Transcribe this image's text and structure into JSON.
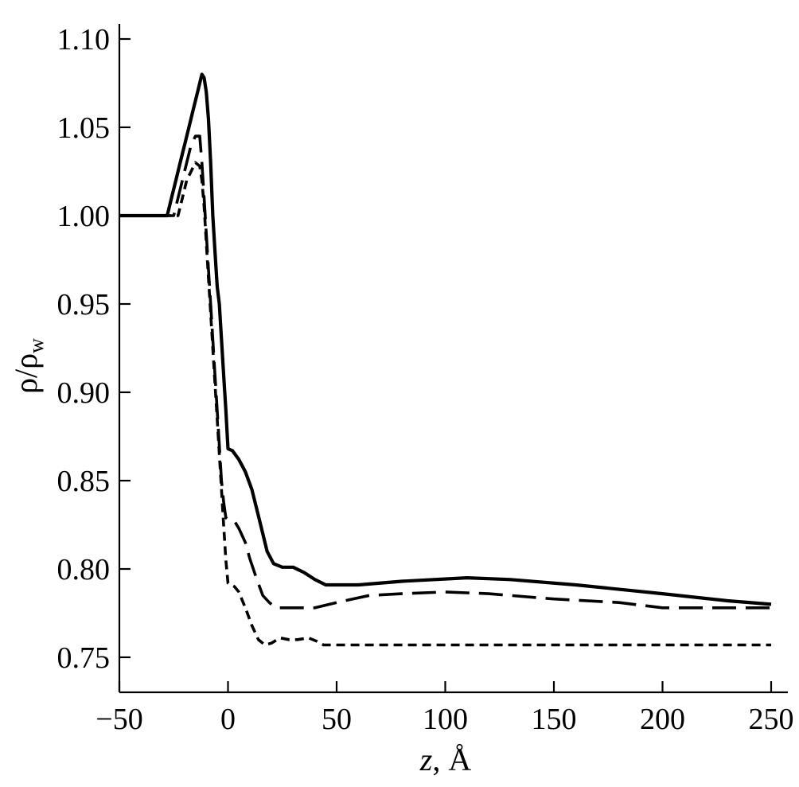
{
  "chart_data": {
    "type": "line",
    "xlabel_var": "z",
    "xlabel_unit": ", Å",
    "ylabel_main": "ρ/ρ",
    "ylabel_sub": "w",
    "xlim": [
      -50,
      250
    ],
    "ylim": [
      0.73,
      1.11
    ],
    "x_ticks": [
      -50,
      0,
      50,
      100,
      150,
      200,
      250
    ],
    "x_tick_labels": [
      "−50",
      "0",
      "50",
      "100",
      "150",
      "200",
      "250"
    ],
    "y_ticks": [
      0.75,
      0.8,
      0.85,
      0.9,
      0.95,
      1.0,
      1.05,
      1.1
    ],
    "y_tick_labels": [
      "0.75",
      "0.80",
      "0.85",
      "0.90",
      "0.95",
      "1.00",
      "1.05",
      "1.10"
    ],
    "grid": false,
    "series": [
      {
        "style": "solid",
        "points": [
          [
            -50,
            1.0
          ],
          [
            -28,
            1.0
          ],
          [
            -26,
            1.01
          ],
          [
            -24,
            1.02
          ],
          [
            -22,
            1.03
          ],
          [
            -20,
            1.04
          ],
          [
            -18,
            1.05
          ],
          [
            -16,
            1.06
          ],
          [
            -14,
            1.07
          ],
          [
            -12,
            1.08
          ],
          [
            -11,
            1.078
          ],
          [
            -10,
            1.07
          ],
          [
            -9,
            1.055
          ],
          [
            -8,
            1.03
          ],
          [
            -7,
            1.0
          ],
          [
            -6,
            0.98
          ],
          [
            -5,
            0.96
          ],
          [
            -4,
            0.95
          ],
          [
            -3,
            0.93
          ],
          [
            -2,
            0.91
          ],
          [
            -1,
            0.89
          ],
          [
            0,
            0.868
          ],
          [
            2,
            0.867
          ],
          [
            5,
            0.862
          ],
          [
            8,
            0.855
          ],
          [
            11,
            0.845
          ],
          [
            13,
            0.835
          ],
          [
            15,
            0.825
          ],
          [
            18,
            0.81
          ],
          [
            21,
            0.803
          ],
          [
            25,
            0.801
          ],
          [
            30,
            0.801
          ],
          [
            35,
            0.798
          ],
          [
            40,
            0.794
          ],
          [
            45,
            0.791
          ],
          [
            60,
            0.791
          ],
          [
            80,
            0.793
          ],
          [
            110,
            0.795
          ],
          [
            130,
            0.794
          ],
          [
            160,
            0.791
          ],
          [
            200,
            0.786
          ],
          [
            230,
            0.782
          ],
          [
            250,
            0.78
          ]
        ]
      },
      {
        "style": "long-dash",
        "points": [
          [
            -50,
            1.0
          ],
          [
            -25,
            1.0
          ],
          [
            -23,
            1.01
          ],
          [
            -21,
            1.02
          ],
          [
            -19,
            1.03
          ],
          [
            -17,
            1.04
          ],
          [
            -15,
            1.045
          ],
          [
            -13,
            1.045
          ],
          [
            -12,
            1.03
          ],
          [
            -11,
            1.01
          ],
          [
            -10,
            0.99
          ],
          [
            -9,
            0.97
          ],
          [
            -8,
            0.95
          ],
          [
            -7,
            0.93
          ],
          [
            -6,
            0.91
          ],
          [
            -5,
            0.89
          ],
          [
            -4,
            0.87
          ],
          [
            -3,
            0.85
          ],
          [
            -2,
            0.838
          ],
          [
            -1,
            0.829
          ],
          [
            0,
            0.828
          ],
          [
            3,
            0.827
          ],
          [
            5,
            0.823
          ],
          [
            8,
            0.815
          ],
          [
            10,
            0.806
          ],
          [
            13,
            0.795
          ],
          [
            16,
            0.785
          ],
          [
            19,
            0.781
          ],
          [
            22,
            0.778
          ],
          [
            30,
            0.778
          ],
          [
            40,
            0.778
          ],
          [
            50,
            0.781
          ],
          [
            65,
            0.785
          ],
          [
            80,
            0.786
          ],
          [
            100,
            0.787
          ],
          [
            120,
            0.786
          ],
          [
            150,
            0.783
          ],
          [
            180,
            0.781
          ],
          [
            200,
            0.778
          ],
          [
            250,
            0.778
          ]
        ]
      },
      {
        "style": "short-dash",
        "points": [
          [
            -50,
            1.0
          ],
          [
            -23,
            1.0
          ],
          [
            -21,
            1.01
          ],
          [
            -19,
            1.02
          ],
          [
            -17,
            1.025
          ],
          [
            -15,
            1.03
          ],
          [
            -13,
            1.028
          ],
          [
            -12,
            1.02
          ],
          [
            -11,
            1.005
          ],
          [
            -10,
            0.985
          ],
          [
            -9,
            0.965
          ],
          [
            -8,
            0.945
          ],
          [
            -7,
            0.925
          ],
          [
            -6,
            0.905
          ],
          [
            -5,
            0.885
          ],
          [
            -4,
            0.865
          ],
          [
            -3,
            0.845
          ],
          [
            -2,
            0.825
          ],
          [
            -1,
            0.805
          ],
          [
            0,
            0.792
          ],
          [
            3,
            0.79
          ],
          [
            5,
            0.787
          ],
          [
            8,
            0.778
          ],
          [
            11,
            0.768
          ],
          [
            14,
            0.76
          ],
          [
            17,
            0.757
          ],
          [
            20,
            0.758
          ],
          [
            24,
            0.761
          ],
          [
            28,
            0.76
          ],
          [
            32,
            0.76
          ],
          [
            37,
            0.761
          ],
          [
            41,
            0.759
          ],
          [
            44,
            0.757
          ],
          [
            60,
            0.757
          ],
          [
            100,
            0.757
          ],
          [
            150,
            0.757
          ],
          [
            200,
            0.757
          ],
          [
            250,
            0.757
          ]
        ]
      }
    ]
  }
}
